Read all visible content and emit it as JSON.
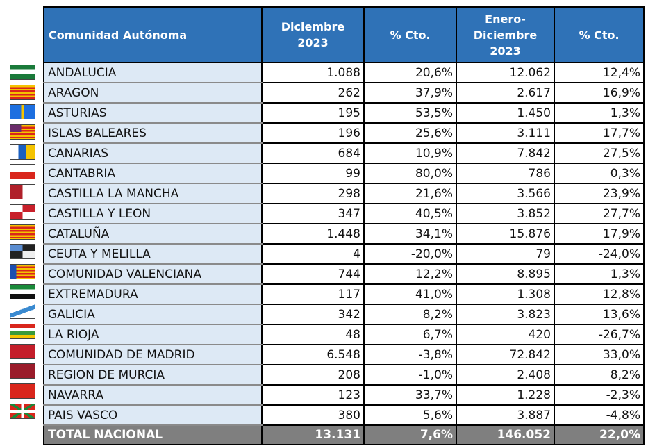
{
  "headers": {
    "c0": "Comunidad Autónoma",
    "c1": "Diciembre 2023",
    "c2": "% Cto.",
    "c3": "Enero-Diciembre 2023",
    "c4": "% Cto."
  },
  "rows": [
    {
      "name": "ANDALUCIA",
      "dic": "1.088",
      "pct1": "20,6%",
      "ene": "12.062",
      "pct2": "12,4%",
      "flag": "andalucia-flag"
    },
    {
      "name": "ARAGON",
      "dic": "262",
      "pct1": "37,9%",
      "ene": "2.617",
      "pct2": "16,9%",
      "flag": "aragon-flag"
    },
    {
      "name": "ASTURIAS",
      "dic": "195",
      "pct1": "53,5%",
      "ene": "1.450",
      "pct2": "1,3%",
      "flag": "asturias-flag"
    },
    {
      "name": "ISLAS BALEARES",
      "dic": "196",
      "pct1": "25,6%",
      "ene": "3.111",
      "pct2": "17,7%",
      "flag": "baleares-flag"
    },
    {
      "name": "CANARIAS",
      "dic": "684",
      "pct1": "10,9%",
      "ene": "7.842",
      "pct2": "27,5%",
      "flag": "canarias-flag"
    },
    {
      "name": "CANTABRIA",
      "dic": "99",
      "pct1": "80,0%",
      "ene": "786",
      "pct2": "0,3%",
      "flag": "cantabria-flag"
    },
    {
      "name": "CASTILLA  LA MANCHA",
      "dic": "298",
      "pct1": "21,6%",
      "ene": "3.566",
      "pct2": "23,9%",
      "flag": "castilla-la-mancha-flag"
    },
    {
      "name": "CASTILLA Y LEON",
      "dic": "347",
      "pct1": "40,5%",
      "ene": "3.852",
      "pct2": "27,7%",
      "flag": "castilla-leon-flag"
    },
    {
      "name": "CATALUÑA",
      "dic": "1.448",
      "pct1": "34,1%",
      "ene": "15.876",
      "pct2": "17,9%",
      "flag": "cataluna-flag"
    },
    {
      "name": "CEUTA Y MELILLA",
      "dic": "4",
      "pct1": "-20,0%",
      "ene": "79",
      "pct2": "-24,0%",
      "flag": "ceuta-melilla-flag"
    },
    {
      "name": "COMUNIDAD VALENCIANA",
      "dic": "744",
      "pct1": "12,2%",
      "ene": "8.895",
      "pct2": "1,3%",
      "flag": "valencia-flag"
    },
    {
      "name": "EXTREMADURA",
      "dic": "117",
      "pct1": "41,0%",
      "ene": "1.308",
      "pct2": "12,8%",
      "flag": "extremadura-flag"
    },
    {
      "name": "GALICIA",
      "dic": "342",
      "pct1": "8,2%",
      "ene": "3.823",
      "pct2": "13,6%",
      "flag": "galicia-flag"
    },
    {
      "name": "LA RIOJA",
      "dic": "48",
      "pct1": "6,7%",
      "ene": "420",
      "pct2": "-26,7%",
      "flag": "la-rioja-flag"
    },
    {
      "name": "COMUNIDAD DE MADRID",
      "dic": "6.548",
      "pct1": "-3,8%",
      "ene": "72.842",
      "pct2": "33,0%",
      "flag": "madrid-flag"
    },
    {
      "name": "REGION DE MURCIA",
      "dic": "208",
      "pct1": "-1,0%",
      "ene": "2.408",
      "pct2": "8,2%",
      "flag": "murcia-flag"
    },
    {
      "name": "NAVARRA",
      "dic": "123",
      "pct1": "33,7%",
      "ene": "1.228",
      "pct2": "-2,3%",
      "flag": "navarra-flag"
    },
    {
      "name": "PAIS VASCO",
      "dic": "380",
      "pct1": "5,6%",
      "ene": "3.887",
      "pct2": "-4,8%",
      "flag": "pais-vasco-flag"
    }
  ],
  "total": {
    "name": "TOTAL NACIONAL",
    "dic": "13.131",
    "pct1": "7,6%",
    "ene": "146.052",
    "pct2": "22,0%"
  }
}
